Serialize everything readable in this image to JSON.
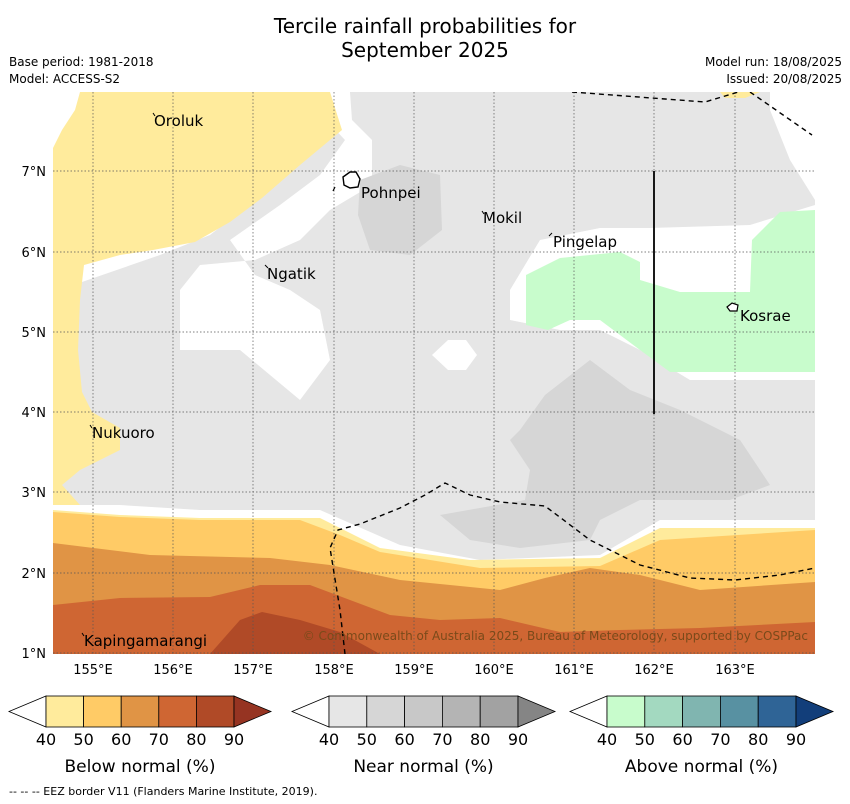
{
  "title_line1": "Tercile rainfall probabilities for",
  "title_line2": "September 2025",
  "base_period": "Base period: 1981-2018",
  "model": "Model: ACCESS-S2",
  "model_run": "Model run: 18/08/2025",
  "issued": "Issued: 20/08/2025",
  "places": [
    {
      "name": "Oroluk"
    },
    {
      "name": "Pohnpei"
    },
    {
      "name": "Mokil"
    },
    {
      "name": "Pingelap"
    },
    {
      "name": "Ngatik"
    },
    {
      "name": "Kosrae"
    },
    {
      "name": "Nukuoro"
    },
    {
      "name": "Kapingamarangi"
    }
  ],
  "lon_ticks": [
    "155°E",
    "156°E",
    "157°E",
    "158°E",
    "159°E",
    "160°E",
    "161°E",
    "162°E",
    "163°E"
  ],
  "lat_ticks": [
    "7°N",
    "6°N",
    "5°N",
    "4°N",
    "3°N",
    "2°N",
    "1°N"
  ],
  "credit": "© Commonwealth of Australia 2025, Bureau of Meteorology, supported by COSPPac",
  "colorbars": [
    {
      "caption": "Below normal (%)",
      "ticks": [
        "40",
        "50",
        "60",
        "70",
        "80",
        "90"
      ],
      "colors": [
        "#ffffff",
        "#ffeb9c",
        "#ffcb66",
        "#e09445",
        "#cf6633",
        "#b04a27",
        "#963422"
      ]
    },
    {
      "caption": "Near normal (%)",
      "ticks": [
        "40",
        "50",
        "60",
        "70",
        "80",
        "90"
      ],
      "colors": [
        "#ffffff",
        "#e6e6e6",
        "#d6d6d6",
        "#c8c8c8",
        "#b4b4b4",
        "#a2a2a2",
        "#858585"
      ]
    },
    {
      "caption": "Above normal (%)",
      "ticks": [
        "40",
        "50",
        "60",
        "70",
        "80",
        "90"
      ],
      "colors": [
        "#ffffff",
        "#c8fccc",
        "#a3d9c0",
        "#80b5b0",
        "#5891a2",
        "#2f6496",
        "#123e7a"
      ]
    }
  ],
  "eez_note": "--  --  -- EEZ border V11 (Flanders Marine Institute, 2019)."
}
